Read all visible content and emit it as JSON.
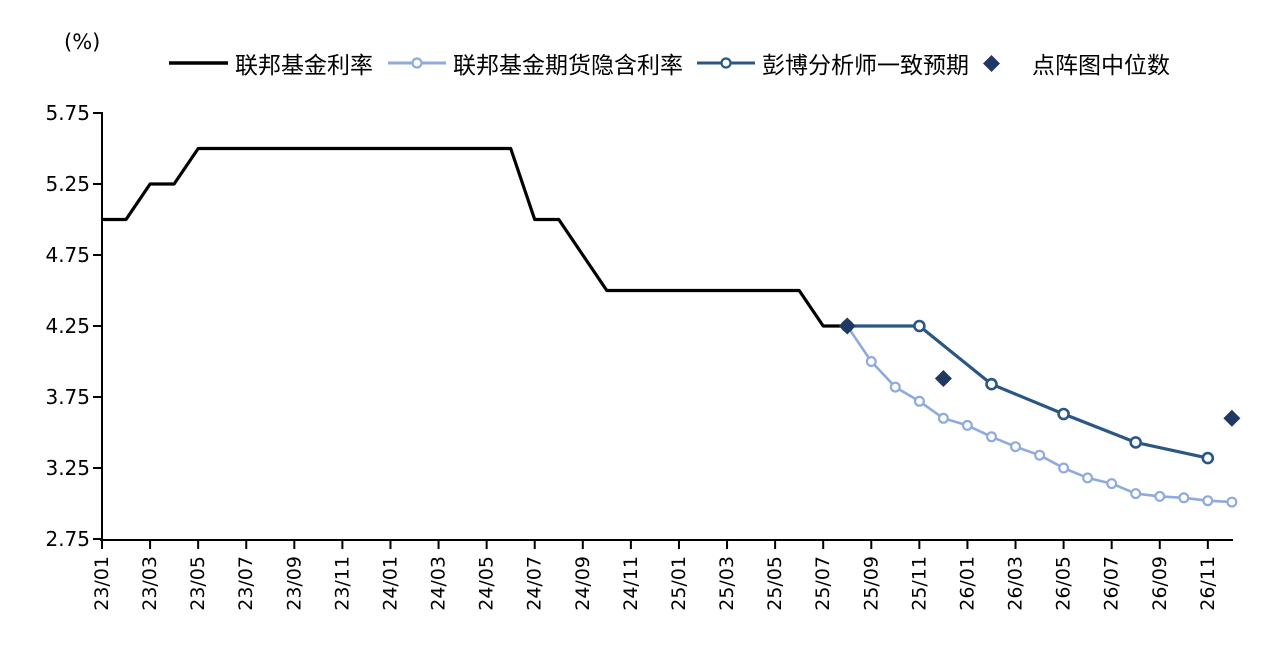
{
  "chart_data": {
    "type": "line",
    "unit_label": "(%)",
    "grid": false,
    "legend_position": "top",
    "y_axis": {
      "min": 2.75,
      "max": 5.75,
      "tick_step": 0.5,
      "tick_labels": [
        "5.75",
        "5.25",
        "4.75",
        "4.25",
        "3.75",
        "3.25",
        "2.75"
      ]
    },
    "x_axis": {
      "tick_labels": [
        "23/01",
        "23/03",
        "23/05",
        "23/07",
        "23/09",
        "23/11",
        "24/01",
        "24/03",
        "24/05",
        "24/07",
        "24/09",
        "24/11",
        "25/01",
        "25/03",
        "25/05",
        "25/07",
        "25/09",
        "25/11",
        "26/01",
        "26/03",
        "26/05",
        "26/07",
        "26/09",
        "26/11"
      ],
      "category_span": "23/01 to 26/12, monthly"
    },
    "series": [
      {
        "id": "fed-funds-rate",
        "name": "联邦基金利率",
        "color": "#000000",
        "marker": "none",
        "line": true,
        "points": [
          [
            "23/01",
            5.0
          ],
          [
            "23/02",
            5.0
          ],
          [
            "23/03",
            5.25
          ],
          [
            "23/04",
            5.25
          ],
          [
            "23/05",
            5.5
          ],
          [
            "23/06",
            5.5
          ],
          [
            "23/07",
            5.5
          ],
          [
            "23/08",
            5.5
          ],
          [
            "23/09",
            5.5
          ],
          [
            "23/10",
            5.5
          ],
          [
            "23/11",
            5.5
          ],
          [
            "23/12",
            5.5
          ],
          [
            "24/01",
            5.5
          ],
          [
            "24/02",
            5.5
          ],
          [
            "24/03",
            5.5
          ],
          [
            "24/04",
            5.5
          ],
          [
            "24/05",
            5.5
          ],
          [
            "24/06",
            5.5
          ],
          [
            "24/07",
            5.0
          ],
          [
            "24/08",
            5.0
          ],
          [
            "24/09",
            4.75
          ],
          [
            "24/10",
            4.5
          ],
          [
            "24/11",
            4.5
          ],
          [
            "24/12",
            4.5
          ],
          [
            "25/01",
            4.5
          ],
          [
            "25/02",
            4.5
          ],
          [
            "25/03",
            4.5
          ],
          [
            "25/04",
            4.5
          ],
          [
            "25/05",
            4.5
          ],
          [
            "25/06",
            4.5
          ],
          [
            "25/07",
            4.25
          ],
          [
            "25/08",
            4.25
          ]
        ]
      },
      {
        "id": "fed-funds-futures-implied-rate",
        "name": "联邦基金期货隐含利率",
        "color": "#8FAADC",
        "marker": "circle",
        "line": true,
        "points": [
          [
            "25/08",
            4.25
          ],
          [
            "25/09",
            4.0
          ],
          [
            "25/10",
            3.82
          ],
          [
            "25/11",
            3.72
          ],
          [
            "25/12",
            3.6
          ],
          [
            "26/01",
            3.55
          ],
          [
            "26/02",
            3.47
          ],
          [
            "26/03",
            3.4
          ],
          [
            "26/04",
            3.34
          ],
          [
            "26/05",
            3.25
          ],
          [
            "26/06",
            3.18
          ],
          [
            "26/07",
            3.14
          ],
          [
            "26/08",
            3.07
          ],
          [
            "26/09",
            3.05
          ],
          [
            "26/10",
            3.04
          ],
          [
            "26/11",
            3.02
          ],
          [
            "26/12",
            3.01
          ]
        ]
      },
      {
        "id": "bloomberg-analyst-consensus",
        "name": "彭博分析师一致预期",
        "color": "#2A5783",
        "marker": "circle",
        "line": true,
        "points": [
          [
            "25/08",
            4.25
          ],
          [
            "25/11",
            4.25
          ],
          [
            "26/02",
            3.84
          ],
          [
            "26/05",
            3.63
          ],
          [
            "26/08",
            3.43
          ],
          [
            "26/11",
            3.32
          ]
        ]
      },
      {
        "id": "dot-plot-median",
        "name": "点阵图中位数",
        "color": "#1F3864",
        "marker": "diamond",
        "line": false,
        "points": [
          [
            "25/08",
            4.25
          ],
          [
            "25/12",
            3.88
          ],
          [
            "26/12",
            3.6
          ]
        ]
      }
    ]
  }
}
